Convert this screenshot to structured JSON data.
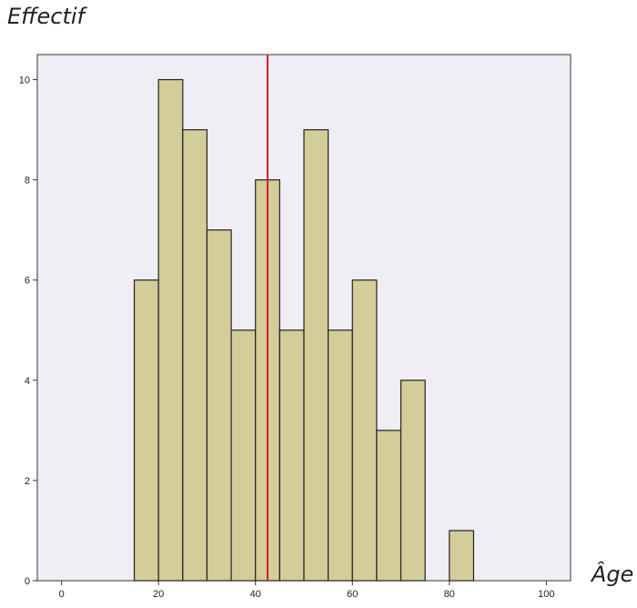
{
  "chart_data": {
    "type": "bar",
    "title": "",
    "ylabel": "Effectif",
    "xlabel": "Âge",
    "xlim": [
      -5,
      105
    ],
    "ylim": [
      0,
      10.5
    ],
    "x_ticks": [
      0,
      20,
      40,
      60,
      80,
      100
    ],
    "y_ticks": [
      0,
      2,
      4,
      6,
      8,
      10
    ],
    "bin_width": 5,
    "bins": [
      {
        "start": 15,
        "end": 20,
        "count": 6
      },
      {
        "start": 20,
        "end": 25,
        "count": 10
      },
      {
        "start": 25,
        "end": 30,
        "count": 9
      },
      {
        "start": 30,
        "end": 35,
        "count": 7
      },
      {
        "start": 35,
        "end": 40,
        "count": 5
      },
      {
        "start": 40,
        "end": 45,
        "count": 8
      },
      {
        "start": 45,
        "end": 50,
        "count": 5
      },
      {
        "start": 50,
        "end": 55,
        "count": 9
      },
      {
        "start": 55,
        "end": 60,
        "count": 5
      },
      {
        "start": 60,
        "end": 65,
        "count": 6
      },
      {
        "start": 65,
        "end": 70,
        "count": 3
      },
      {
        "start": 70,
        "end": 75,
        "count": 4
      },
      {
        "start": 80,
        "end": 85,
        "count": 1
      }
    ],
    "mean_line": 42.5,
    "grid": false,
    "colors": {
      "bar_fill": "#d3cd99",
      "bar_stroke": "#222222",
      "plot_background": "#f1edf5",
      "mean_line": "#d61f1f"
    }
  }
}
